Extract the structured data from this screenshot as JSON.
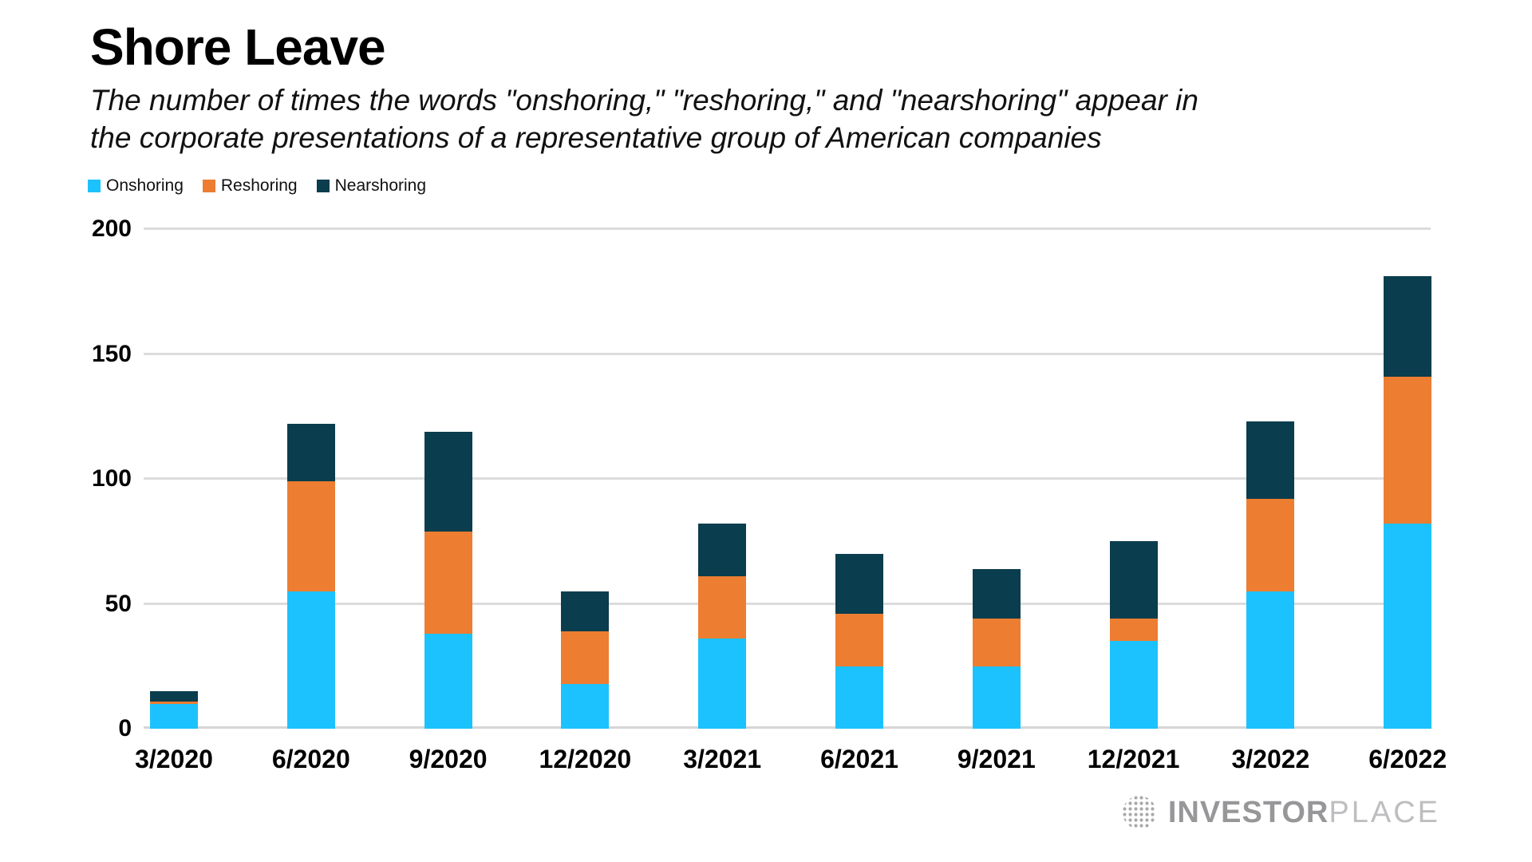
{
  "title": "Shore Leave",
  "subtitle": "The number of times the words \"onshoring,\" \"reshoring,\" and \"nearshoring\" appear in the corporate presentations of a representative group of American companies",
  "colors": {
    "onshoring": "#1CC2FD",
    "reshoring": "#ED7D31",
    "nearshoring": "#0A3D4D",
    "gridline": "#DCDCDC",
    "logo_gray": "#97979A"
  },
  "legend": [
    {
      "label": "Onshoring",
      "color": "#1CC2FD"
    },
    {
      "label": "Reshoring",
      "color": "#ED7D31"
    },
    {
      "label": "Nearshoring",
      "color": "#0A3D4D"
    }
  ],
  "chart_data": {
    "type": "bar",
    "stacked": true,
    "title": "Shore Leave",
    "xlabel": "",
    "ylabel": "",
    "ylim": [
      0,
      200
    ],
    "yticks": [
      0,
      50,
      100,
      150,
      200
    ],
    "grid": true,
    "legend_position": "top-left",
    "categories": [
      "3/2020",
      "6/2020",
      "9/2020",
      "12/2020",
      "3/2021",
      "6/2021",
      "9/2021",
      "12/2021",
      "3/2022",
      "6/2022"
    ],
    "series": [
      {
        "name": "Onshoring",
        "color": "#1CC2FD",
        "values": [
          10,
          55,
          38,
          18,
          36,
          25,
          25,
          35,
          55,
          82
        ]
      },
      {
        "name": "Reshoring",
        "color": "#ED7D31",
        "values": [
          1,
          44,
          41,
          21,
          25,
          21,
          19,
          9,
          37,
          59
        ]
      },
      {
        "name": "Nearshoring",
        "color": "#0A3D4D",
        "values": [
          4,
          23,
          40,
          16,
          21,
          24,
          20,
          31,
          31,
          40
        ]
      }
    ]
  },
  "footer": {
    "logo_investor": "INVESTOR",
    "logo_place": "PLACE"
  }
}
